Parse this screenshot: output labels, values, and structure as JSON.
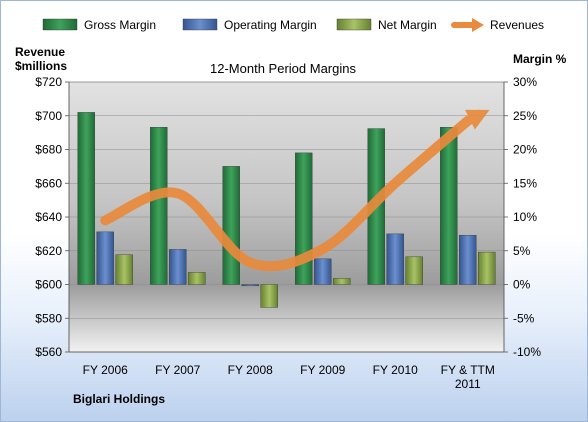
{
  "chart_data": {
    "type": "bar",
    "title": "12-Month Period Margins",
    "categories": [
      "FY 2006",
      "FY 2007",
      "FY 2008",
      "FY 2009",
      "FY 2010",
      "FY & TTM\n2011"
    ],
    "ylabel_left": "Revenue\n$millions",
    "ylabel_right": "Margin %",
    "ylim_left": [
      560,
      720
    ],
    "ylim_right": [
      -10,
      30
    ],
    "yticks_left": [
      "$560",
      "$580",
      "$600",
      "$620",
      "$640",
      "$660",
      "$680",
      "$700",
      "$720"
    ],
    "yticks_right": [
      "-10%",
      "-5%",
      "0%",
      "5%",
      "10%",
      "15%",
      "20%",
      "25%",
      "30%"
    ],
    "series": [
      {
        "name": "Gross Margin",
        "axis": "right",
        "color": "#2e8a4a",
        "values": [
          25.5,
          23.3,
          17.5,
          19.5,
          23.1,
          23.3
        ]
      },
      {
        "name": "Operating Margin",
        "axis": "right",
        "color": "#4e72b8",
        "values": [
          7.8,
          5.2,
          -0.2,
          3.8,
          7.5,
          7.3
        ]
      },
      {
        "name": "Net Margin",
        "axis": "right",
        "color": "#8cab4c",
        "values": [
          4.4,
          1.8,
          -3.4,
          0.9,
          4.1,
          4.8
        ]
      },
      {
        "name": "Revenues",
        "axis": "left",
        "type": "line",
        "color": "#e98a3c",
        "values": [
          638,
          654,
          613,
          621,
          660,
          697
        ]
      }
    ],
    "legend_position": "top",
    "grid": true
  },
  "footer": {
    "company": "Biglari Holdings"
  }
}
